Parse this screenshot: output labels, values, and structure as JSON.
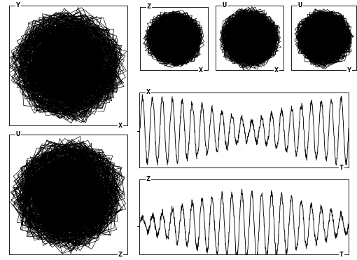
{
  "panels": {
    "yx": {
      "v": "Y",
      "h": "X"
    },
    "zx": {
      "v": "Z",
      "h": "X"
    },
    "ux": {
      "v": "U",
      "h": "X"
    },
    "uy": {
      "v": "U",
      "h": "Y"
    },
    "xt": {
      "v": "X",
      "h": "T"
    },
    "uz": {
      "v": "U",
      "h": "Z"
    },
    "zt": {
      "v": "Z",
      "h": "T"
    }
  },
  "colors": {
    "trace": "#000000",
    "frame": "#222222",
    "background": "#ffffff"
  },
  "plot_types": {
    "phase": [
      "yx",
      "zx",
      "ux",
      "uy",
      "uz"
    ],
    "time_series": [
      "xt",
      "zt"
    ]
  }
}
